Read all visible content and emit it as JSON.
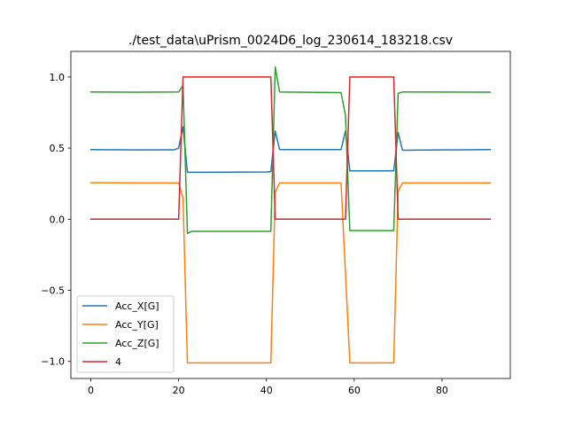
{
  "chart_data": {
    "type": "line",
    "title": "./test_data\\uPrism_0024D6_log_230614_183218.csv",
    "xlabel": "",
    "ylabel": "",
    "xlim": [
      -4.55,
      95.55
    ],
    "ylim": [
      -1.12,
      1.18
    ],
    "xticks": [
      0,
      20,
      40,
      60,
      80
    ],
    "xtick_labels": [
      "0",
      "20",
      "40",
      "60",
      "80"
    ],
    "yticks": [
      -1.0,
      -0.5,
      0.0,
      0.5,
      1.0
    ],
    "ytick_labels": [
      "−1.0",
      "−0.5",
      "0.0",
      "0.5",
      "1.0"
    ],
    "grid": false,
    "legend_position": "lower-left",
    "series": [
      {
        "name": "Acc_X[G]",
        "color": "#1f77b4",
        "points": [
          [
            0,
            0.49
          ],
          [
            10,
            0.487
          ],
          [
            19,
            0.488
          ],
          [
            20,
            0.5
          ],
          [
            21,
            0.65
          ],
          [
            22,
            0.33
          ],
          [
            40,
            0.332
          ],
          [
            41,
            0.335
          ],
          [
            42,
            0.62
          ],
          [
            43,
            0.49
          ],
          [
            57,
            0.49
          ],
          [
            58,
            0.62
          ],
          [
            59,
            0.34
          ],
          [
            69,
            0.34
          ],
          [
            70,
            0.61
          ],
          [
            71,
            0.485
          ],
          [
            91,
            0.49
          ]
        ]
      },
      {
        "name": "Acc_Y[G]",
        "color": "#ff7f0e",
        "points": [
          [
            0,
            0.257
          ],
          [
            10,
            0.255
          ],
          [
            20,
            0.255
          ],
          [
            21,
            0.15
          ],
          [
            22,
            -1.01
          ],
          [
            41,
            -1.01
          ],
          [
            42,
            0.19
          ],
          [
            43,
            0.255
          ],
          [
            57,
            0.255
          ],
          [
            59,
            -1.01
          ],
          [
            69,
            -1.01
          ],
          [
            70,
            0.2
          ],
          [
            71,
            0.255
          ],
          [
            91,
            0.255
          ]
        ]
      },
      {
        "name": "Acc_Z[G]",
        "color": "#2ca02c",
        "points": [
          [
            0,
            0.895
          ],
          [
            10,
            0.893
          ],
          [
            20,
            0.895
          ],
          [
            21,
            0.94
          ],
          [
            22,
            -0.1
          ],
          [
            23,
            -0.085
          ],
          [
            41,
            -0.085
          ],
          [
            42,
            1.07
          ],
          [
            43,
            0.895
          ],
          [
            57,
            0.89
          ],
          [
            58,
            0.73
          ],
          [
            59,
            -0.08
          ],
          [
            69,
            -0.08
          ],
          [
            70,
            0.885
          ],
          [
            71,
            0.895
          ],
          [
            91,
            0.893
          ]
        ]
      },
      {
        "name": "4",
        "color": "#d62728",
        "points": [
          [
            0,
            0
          ],
          [
            20,
            0
          ],
          [
            21,
            1
          ],
          [
            41,
            1
          ],
          [
            42,
            0
          ],
          [
            58,
            0
          ],
          [
            59,
            1
          ],
          [
            69,
            1
          ],
          [
            70,
            0
          ],
          [
            91,
            0
          ]
        ]
      }
    ]
  }
}
